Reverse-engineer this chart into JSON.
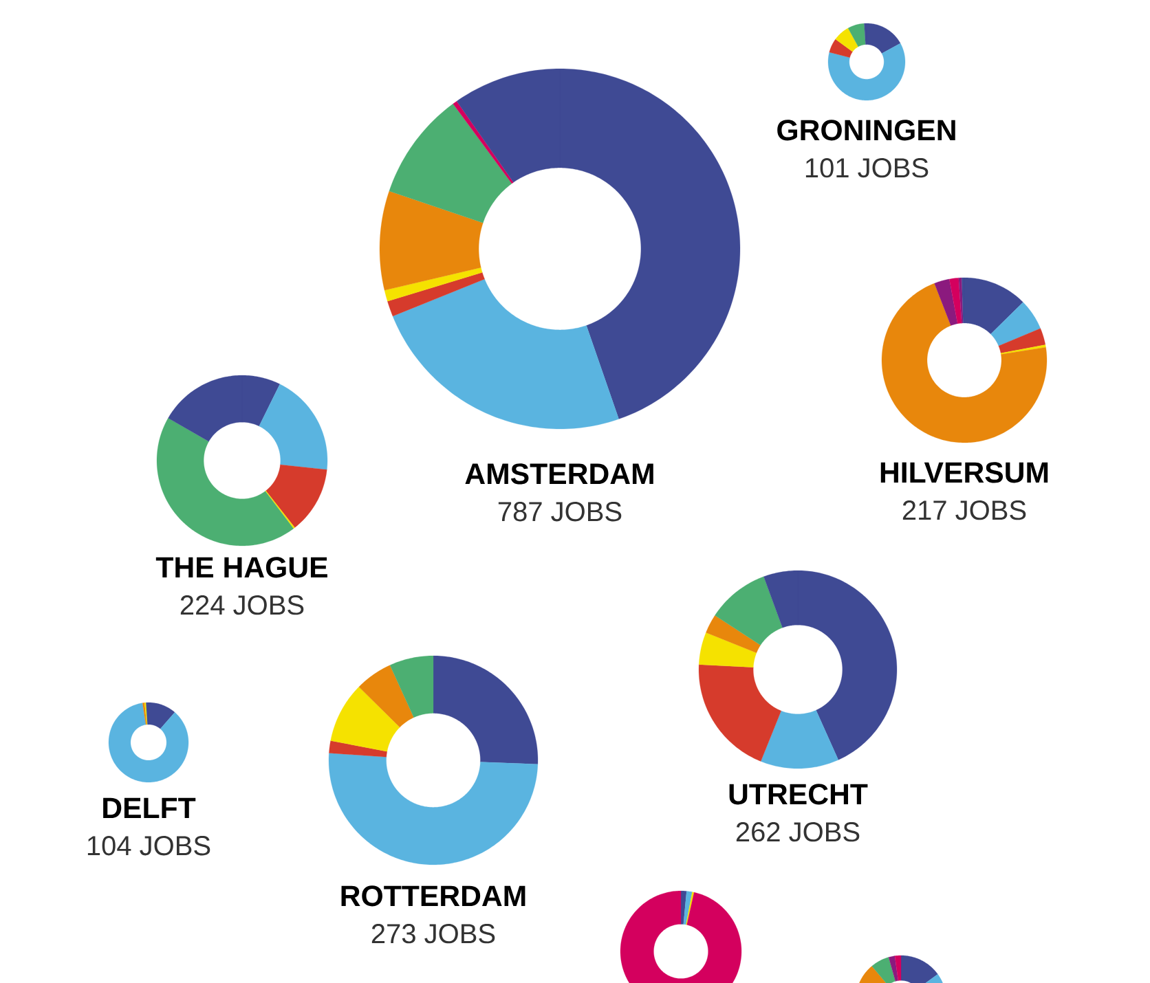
{
  "chart_data": [
    {
      "type": "donut",
      "title": "GRONINGEN",
      "subtitle": "101 JOBS",
      "categories": [
        null,
        null,
        null,
        null,
        null,
        null
      ],
      "values": [
        17,
        62,
        6,
        7,
        7,
        1
      ],
      "colors": [
        "#3f4a94",
        "#5ab4e0",
        "#d63b2c",
        "#f5e200",
        "#4caf72",
        "#3f4a94"
      ]
    },
    {
      "type": "donut",
      "title": "AMSTERDAM",
      "subtitle": "787 JOBS",
      "categories": [
        null,
        null,
        null,
        null,
        null,
        null,
        null,
        null
      ],
      "values": [
        44.7,
        24.2,
        1.4,
        1.0,
        8.9,
        9.7,
        0.4,
        9.7
      ],
      "colors": [
        "#3f4a94",
        "#5ab4e0",
        "#d63b2c",
        "#f5e200",
        "#e8870c",
        "#4caf72",
        "#d4005e",
        "#3f4a94"
      ]
    },
    {
      "type": "donut",
      "title": "HILVERSUM",
      "subtitle": "217 JOBS",
      "categories": [
        null,
        null,
        null,
        null,
        null,
        null,
        null,
        null,
        null
      ],
      "values": [
        12.6,
        6.1,
        3.3,
        0.5,
        71.6,
        3.0,
        1.8,
        0.6,
        0.5
      ],
      "colors": [
        "#3f4a94",
        "#5ab4e0",
        "#d63b2c",
        "#f5e200",
        "#e8870c",
        "#8b1a7e",
        "#d4005e",
        "#8b1a7e",
        "#3f4a94"
      ]
    },
    {
      "type": "donut",
      "title": "THE HAGUE",
      "subtitle": "224 JOBS",
      "categories": [
        null,
        null,
        null,
        null,
        null,
        null
      ],
      "values": [
        7.3,
        19.4,
        12.7,
        0.3,
        43.6,
        16.7
      ],
      "colors": [
        "#3f4a94",
        "#5ab4e0",
        "#d63b2c",
        "#f5e200",
        "#4caf72",
        "#3f4a94"
      ]
    },
    {
      "type": "donut",
      "title": "DELFT",
      "subtitle": "104 JOBS",
      "categories": [
        null,
        null,
        null,
        null,
        null
      ],
      "values": [
        11.4,
        86.2,
        0.8,
        0.6,
        1.0
      ],
      "colors": [
        "#3f4a94",
        "#5ab4e0",
        "#e8870c",
        "#f5e200",
        "#3f4a94"
      ]
    },
    {
      "type": "donut",
      "title": "ROTTERDAM",
      "subtitle": "273 JOBS",
      "categories": [
        null,
        null,
        null,
        null,
        null,
        null
      ],
      "values": [
        25.6,
        50.5,
        1.9,
        9.4,
        5.8,
        6.8
      ],
      "colors": [
        "#3f4a94",
        "#5ab4e0",
        "#d63b2c",
        "#f5e200",
        "#e8870c",
        "#4caf72"
      ]
    },
    {
      "type": "donut",
      "title": "UTRECHT",
      "subtitle": "262 JOBS",
      "categories": [
        null,
        null,
        null,
        null,
        null,
        null,
        null
      ],
      "values": [
        43.3,
        12.8,
        19.7,
        5.3,
        3.1,
        10.2,
        5.6
      ],
      "colors": [
        "#3f4a94",
        "#5ab4e0",
        "#d63b2c",
        "#f5e200",
        "#e8870c",
        "#4caf72",
        "#3f4a94"
      ]
    },
    {
      "type": "donut",
      "categories": [
        null,
        null,
        null,
        null
      ],
      "values": [
        1.5,
        1.5,
        0.5,
        96.5
      ],
      "colors": [
        "#3f4a94",
        "#5ab4e0",
        "#f5e200",
        "#d4005e"
      ]
    },
    {
      "type": "donut",
      "categories": [
        null,
        null,
        null,
        null,
        null,
        null
      ],
      "values": [
        15,
        65.6,
        8.3,
        6.7,
        2.2,
        2.2
      ],
      "colors": [
        "#3f4a94",
        "#5ab4e0",
        "#e8870c",
        "#4caf72",
        "#8b1a7e",
        "#d4005e"
      ]
    }
  ]
}
